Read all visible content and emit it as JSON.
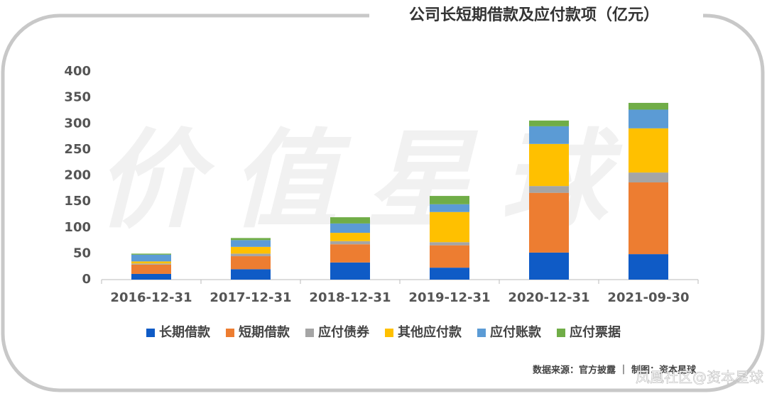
{
  "chart_data": {
    "type": "stacked_bar",
    "title": "公司长短期借款及应付款项（亿元）",
    "categories": [
      "2016-12-31",
      "2017-12-31",
      "2018-12-31",
      "2019-12-31",
      "2020-12-31",
      "2021-09-30"
    ],
    "series": [
      {
        "name": "长期借款",
        "color": "#0f5bc6",
        "values": [
          11,
          20,
          33,
          23,
          52,
          49
        ]
      },
      {
        "name": "短期借款",
        "color": "#ed7d31",
        "values": [
          18,
          25,
          35,
          43,
          115,
          138
        ]
      },
      {
        "name": "应付债券",
        "color": "#a5a5a5",
        "values": [
          2,
          5,
          6,
          6,
          13,
          19
        ]
      },
      {
        "name": "其他应付款",
        "color": "#ffc000",
        "values": [
          4,
          13,
          16,
          58,
          81,
          85
        ]
      },
      {
        "name": "应付账款",
        "color": "#5b9bd5",
        "values": [
          13,
          13,
          18,
          15,
          34,
          36
        ]
      },
      {
        "name": "应付票据",
        "color": "#70ad47",
        "values": [
          2,
          4,
          12,
          16,
          11,
          13
        ]
      }
    ],
    "ylim": [
      0,
      400
    ],
    "yticks": [
      0,
      50,
      100,
      150,
      200,
      250,
      300,
      350,
      400
    ],
    "grid": false,
    "legend": "bottom",
    "source": "数据来源：官方披露 ｜ 制图：资本星球",
    "watermark": "价值星球",
    "corner_watermark": "凤凰社区@资本星球"
  }
}
